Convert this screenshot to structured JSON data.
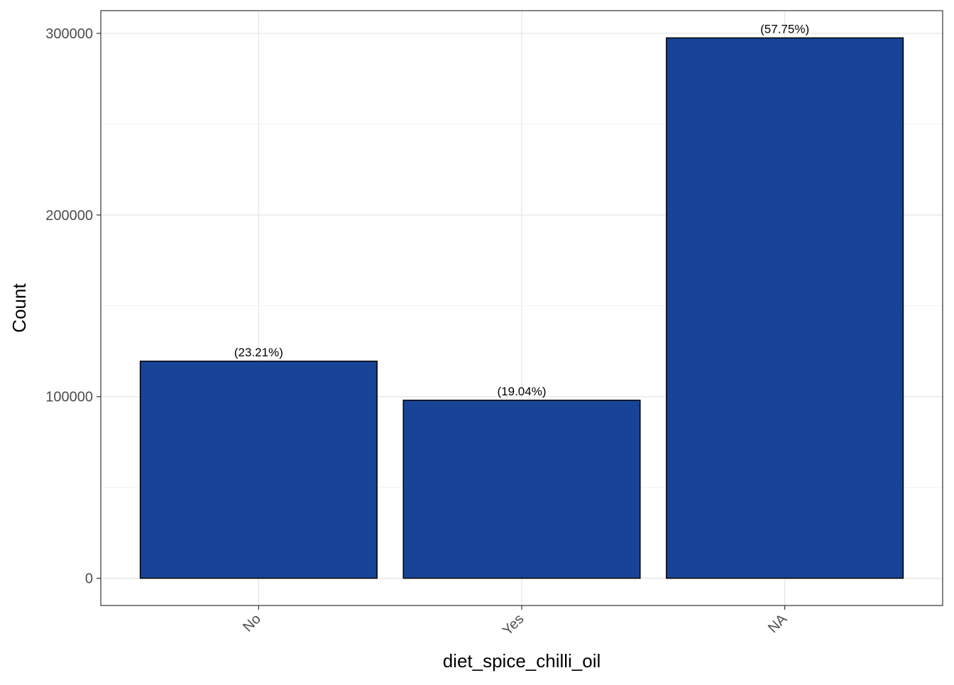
{
  "chart_data": {
    "type": "bar",
    "title": "",
    "xlabel": "diet_spice_chilli_oil",
    "ylabel": "Count",
    "categories": [
      "No",
      "Yes",
      "NA"
    ],
    "values": [
      119500,
      98000,
      297500
    ],
    "bar_labels": [
      "(23.21%)",
      "(19.04%)",
      "(57.75%)"
    ],
    "y_ticks": [
      0,
      100000,
      200000,
      300000
    ],
    "y_tick_labels": [
      "0",
      "100000",
      "200000",
      "300000"
    ],
    "ylim": [
      -15000,
      312500
    ],
    "grid": true,
    "legend": "none",
    "colors": {
      "bar_fill": "#184497",
      "bar_stroke": "#000000",
      "grid_major": "#e6e6e6",
      "grid_minor": "#f2f2f2",
      "panel_border": "#333333",
      "tick_label": "#4d4d4d",
      "axis_title": "#000000"
    }
  }
}
